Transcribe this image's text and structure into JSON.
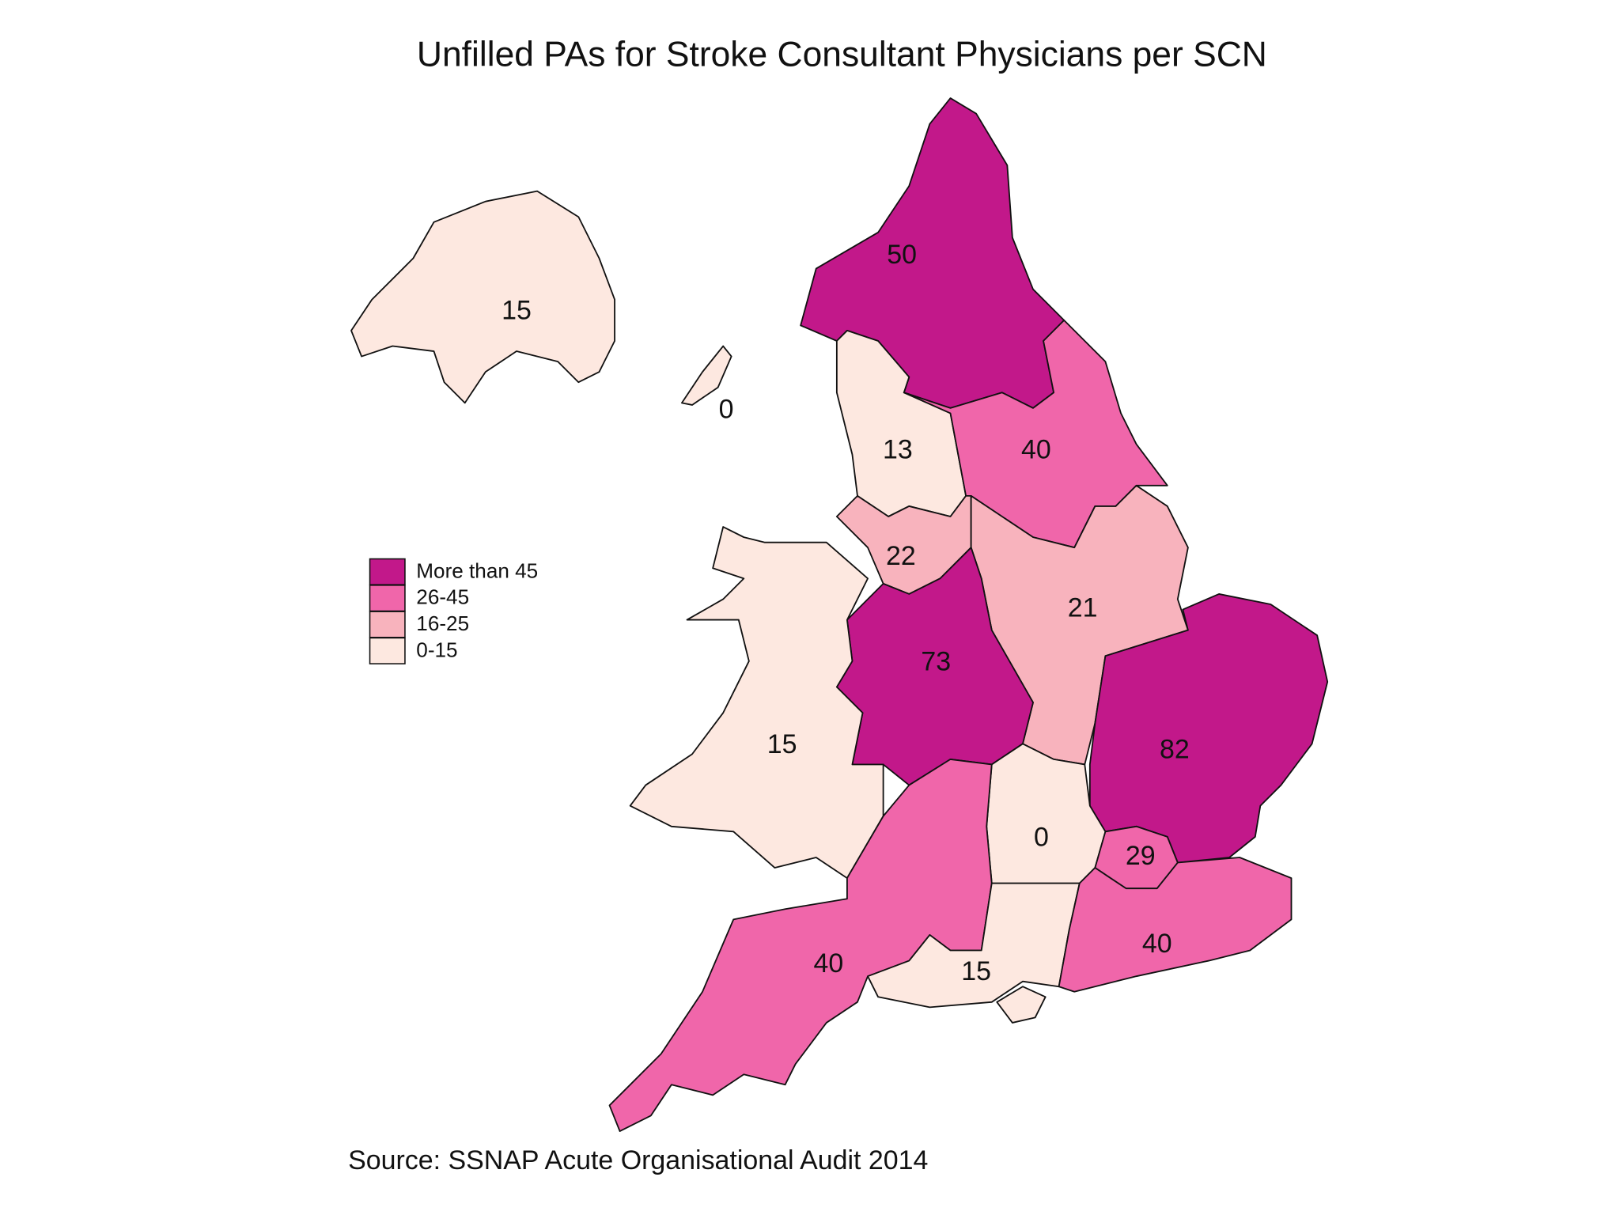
{
  "map": {
    "title": "Unfilled PAs for Stroke Consultant Physicians per SCN",
    "source": "Source: SSNAP Acute Organisational Audit 2014",
    "legend": [
      {
        "label": "More than 45",
        "color": "#c2188a"
      },
      {
        "label": "26-45",
        "color": "#f066aa"
      },
      {
        "label": "16-25",
        "color": "#f8b3bd"
      },
      {
        "label": "0-15",
        "color": "#fde8e0"
      }
    ],
    "regions": [
      {
        "value": 15,
        "color": "#fde8e0"
      },
      {
        "value": 0,
        "color": "#fde8e0"
      },
      {
        "value": 50,
        "color": "#c2188a"
      },
      {
        "value": 13,
        "color": "#fde8e0"
      },
      {
        "value": 40,
        "color": "#f066aa"
      },
      {
        "value": 22,
        "color": "#f8b3bd"
      },
      {
        "value": 21,
        "color": "#f8b3bd"
      },
      {
        "value": 73,
        "color": "#c2188a"
      },
      {
        "value": 15,
        "color": "#fde8e0"
      },
      {
        "value": 82,
        "color": "#c2188a"
      },
      {
        "value": 0,
        "color": "#fde8e0"
      },
      {
        "value": 29,
        "color": "#f066aa"
      },
      {
        "value": 40,
        "color": "#f066aa"
      },
      {
        "value": 15,
        "color": "#fde8e0"
      },
      {
        "value": 40,
        "color": "#f066aa"
      }
    ]
  }
}
